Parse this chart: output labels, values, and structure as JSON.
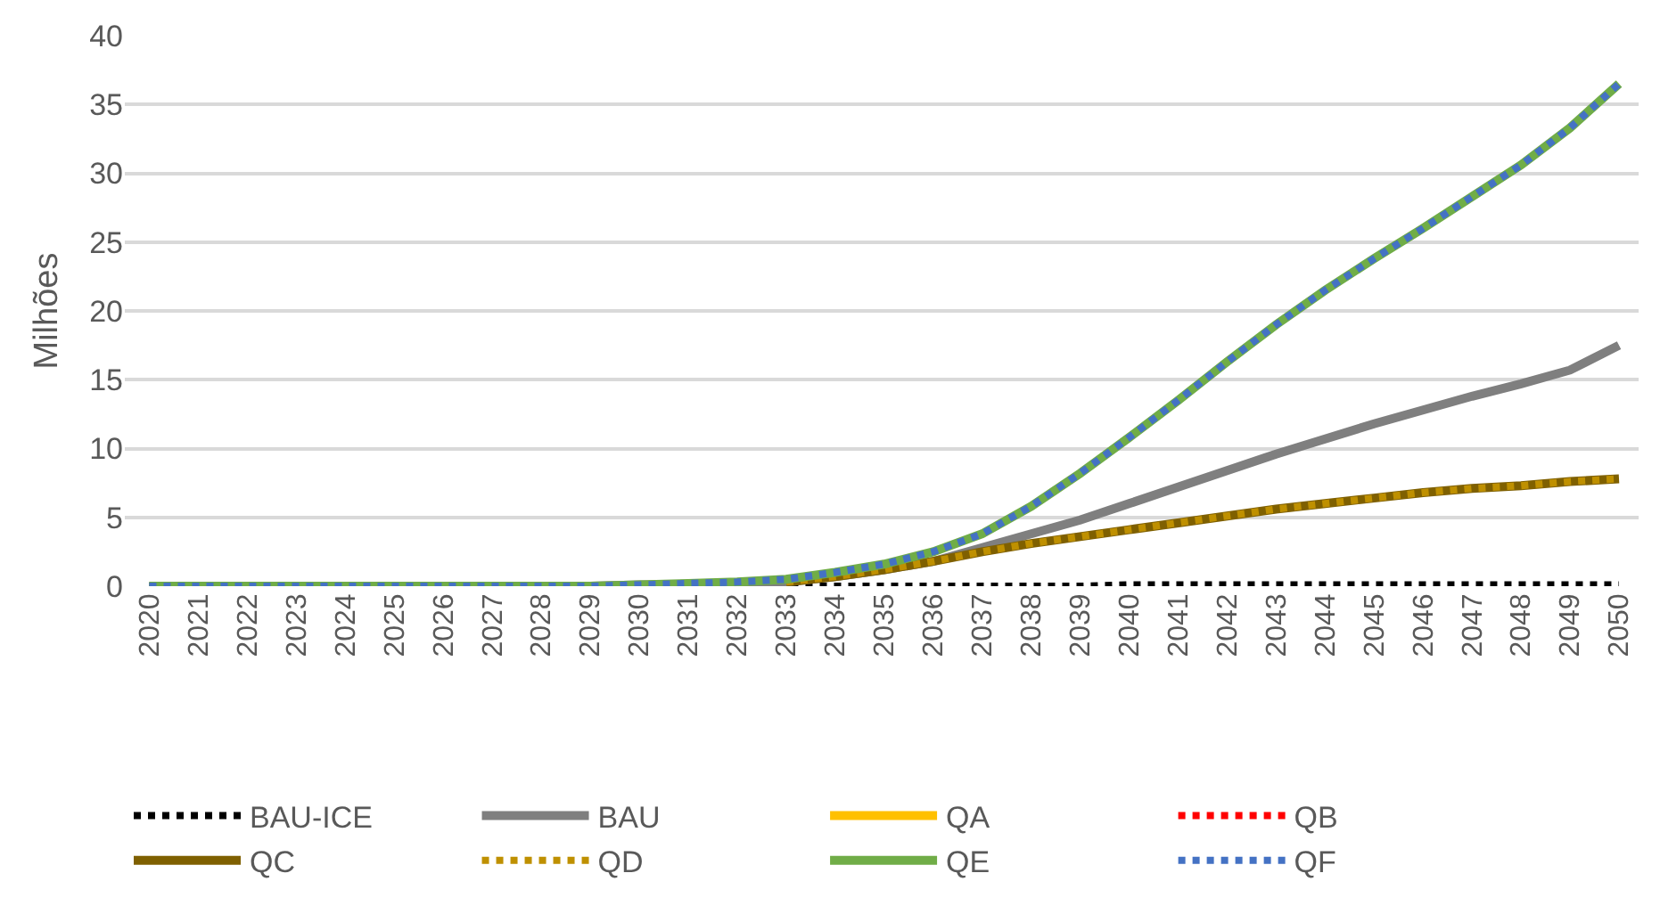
{
  "chart_data": {
    "type": "line",
    "ylabel": "Milhões",
    "categories": [
      "2020",
      "2021",
      "2022",
      "2023",
      "2024",
      "2025",
      "2026",
      "2027",
      "2028",
      "2029",
      "2030",
      "2031",
      "2032",
      "2033",
      "2034",
      "2035",
      "2036",
      "2037",
      "2038",
      "2039",
      "2040",
      "2041",
      "2042",
      "2043",
      "2044",
      "2045",
      "2046",
      "2047",
      "2048",
      "2049",
      "2050"
    ],
    "ylim": [
      0,
      40
    ],
    "yticks": [
      0,
      5,
      10,
      15,
      20,
      25,
      30,
      35,
      40
    ],
    "grid": "y",
    "legend": "bottom",
    "marker": "none",
    "series": [
      {
        "name": "BAU-ICE",
        "color": "#000000",
        "line_style": "dotted",
        "values": [
          0,
          0,
          0,
          0,
          0,
          0,
          0,
          0,
          0,
          0,
          0,
          0,
          0,
          0,
          0,
          0,
          0,
          0,
          0,
          0,
          0.1,
          0.1,
          0.1,
          0.1,
          0.1,
          0.1,
          0.1,
          0.1,
          0.1,
          0.1,
          0.1
        ]
      },
      {
        "name": "BAU",
        "color": "#7f7f7f",
        "line_style": "solid",
        "values": [
          0,
          0,
          0,
          0,
          0,
          0,
          0,
          0,
          0,
          0,
          0.1,
          0.1,
          0.2,
          0.3,
          0.7,
          1.2,
          1.8,
          2.8,
          3.8,
          4.8,
          6.0,
          7.2,
          8.4,
          9.6,
          10.7,
          11.8,
          12.8,
          13.8,
          14.7,
          15.7,
          17.5
        ]
      },
      {
        "name": "QA",
        "color": "#ffc000",
        "line_style": "solid",
        "values": [
          null,
          null,
          null,
          null,
          null,
          null,
          null,
          null,
          null,
          null,
          null,
          null,
          null,
          null,
          null,
          null,
          null,
          null,
          null,
          null,
          null,
          null,
          null,
          null,
          null,
          null,
          null,
          null,
          null,
          null,
          null
        ]
      },
      {
        "name": "QB",
        "color": "#ff0000",
        "line_style": "dotted",
        "values": [
          null,
          null,
          null,
          null,
          null,
          null,
          null,
          null,
          null,
          null,
          null,
          null,
          null,
          null,
          null,
          null,
          null,
          null,
          null,
          null,
          null,
          null,
          null,
          null,
          null,
          null,
          null,
          null,
          null,
          null,
          null
        ]
      },
      {
        "name": "QC",
        "color": "#7f6000",
        "line_style": "solid",
        "values": [
          null,
          null,
          null,
          null,
          null,
          null,
          null,
          null,
          null,
          null,
          null,
          null,
          null,
          0.3,
          0.7,
          1.2,
          1.8,
          2.5,
          3.1,
          3.6,
          4.1,
          4.6,
          5.1,
          5.6,
          6.0,
          6.4,
          6.8,
          7.1,
          7.3,
          7.6,
          7.8
        ]
      },
      {
        "name": "QD",
        "color": "#bf9000",
        "line_style": "dotted",
        "values": [
          null,
          null,
          null,
          null,
          null,
          null,
          null,
          null,
          null,
          null,
          null,
          null,
          null,
          0.3,
          0.7,
          1.2,
          1.8,
          2.5,
          3.1,
          3.6,
          4.1,
          4.6,
          5.1,
          5.6,
          6.0,
          6.4,
          6.8,
          7.1,
          7.3,
          7.6,
          7.8
        ]
      },
      {
        "name": "QE",
        "color": "#70ad47",
        "line_style": "solid",
        "values": [
          0,
          0,
          0,
          0,
          0,
          0,
          0,
          0,
          0,
          0,
          0.1,
          0.2,
          0.3,
          0.5,
          1.0,
          1.6,
          2.5,
          3.8,
          5.8,
          8.2,
          10.8,
          13.5,
          16.3,
          19.0,
          21.5,
          23.8,
          26.0,
          28.3,
          30.6,
          33.3,
          36.5
        ]
      },
      {
        "name": "QF",
        "color": "#4472c4",
        "line_style": "dotted",
        "values": [
          0,
          0,
          0,
          0,
          0,
          0,
          0,
          0,
          0,
          0,
          0.1,
          0.2,
          0.3,
          0.5,
          1.0,
          1.6,
          2.5,
          3.8,
          5.8,
          8.2,
          10.8,
          13.5,
          16.3,
          19.0,
          21.5,
          23.8,
          26.0,
          28.3,
          30.6,
          33.3,
          36.5
        ]
      }
    ]
  }
}
